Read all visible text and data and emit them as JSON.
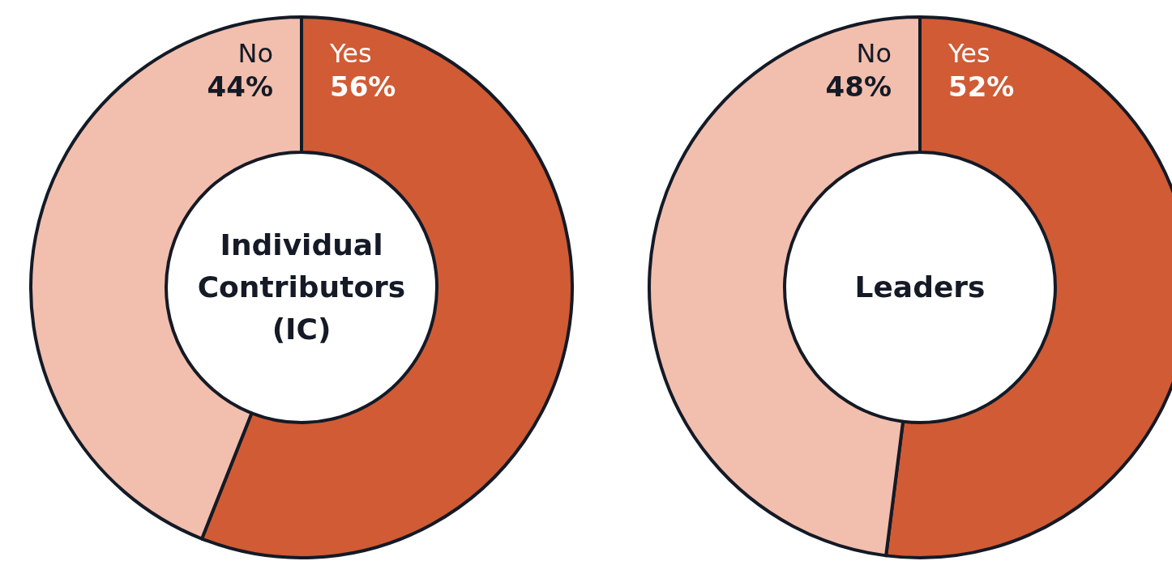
{
  "chart_data": [
    {
      "type": "donut",
      "title": "Individual Contributors (IC)",
      "categories": [
        "Yes",
        "No"
      ],
      "values": [
        56,
        44
      ],
      "value_labels": [
        "56%",
        "44%"
      ],
      "colors": [
        "#d05b35",
        "#f2bead"
      ],
      "legend": false
    },
    {
      "type": "donut",
      "title": "Leaders",
      "categories": [
        "Yes",
        "No"
      ],
      "values": [
        52,
        48
      ],
      "value_labels": [
        "52%",
        "48%"
      ],
      "colors": [
        "#d05b35",
        "#f2bead"
      ],
      "legend": false
    }
  ]
}
